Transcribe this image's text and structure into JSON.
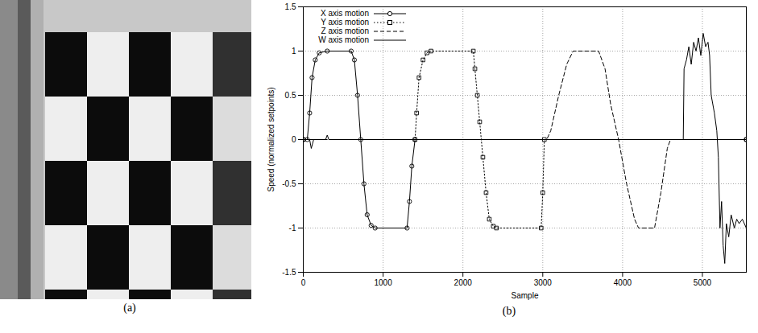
{
  "chart_data": [
    {
      "type": "image",
      "caption": "(a)"
    },
    {
      "type": "line",
      "caption": "(b)",
      "x_label": "Sample",
      "y_label": "Speed (normalized setpoints)",
      "xlim": [
        0,
        5550
      ],
      "xticks": [
        0,
        1000,
        2000,
        3000,
        4000,
        5000
      ],
      "ylim": [
        -1.5,
        1.5
      ],
      "yticks": [
        -1.5,
        -1,
        -0.5,
        0,
        0.5,
        1,
        1.5
      ],
      "grid": true,
      "legend": "upper left",
      "series": [
        {
          "name": "X axis motion",
          "color": "#000000",
          "marker": "circle",
          "line_style": "solid",
          "x": [
            0,
            50,
            80,
            110,
            150,
            200,
            300,
            600,
            640,
            680,
            720,
            760,
            800,
            850,
            900,
            1300,
            1330,
            1360,
            1400,
            5550
          ],
          "values": [
            0,
            0,
            0.3,
            0.7,
            0.9,
            0.98,
            1,
            1,
            0.9,
            0.5,
            0,
            -0.5,
            -0.85,
            -0.97,
            -1,
            -1,
            -0.7,
            -0.3,
            0,
            0
          ]
        },
        {
          "name": "Y axis motion",
          "color": "#000000",
          "marker": "square",
          "line_style": "dotted",
          "x": [
            0,
            1400,
            1420,
            1450,
            1500,
            1550,
            1600,
            2130,
            2150,
            2180,
            2210,
            2250,
            2290,
            2330,
            2380,
            2420,
            2980,
            3000,
            3020,
            5550
          ],
          "values": [
            0,
            0,
            0.3,
            0.7,
            0.9,
            0.98,
            1,
            1,
            0.8,
            0.5,
            0.2,
            -0.2,
            -0.6,
            -0.9,
            -0.98,
            -1,
            -1,
            -0.6,
            0,
            0
          ]
        },
        {
          "name": "Z axis motion",
          "color": "#000000",
          "marker": "none",
          "line_style": "dashed",
          "x": [
            0,
            3050,
            3100,
            3200,
            3300,
            3380,
            3700,
            3780,
            3850,
            3950,
            4050,
            4150,
            4200,
            4400,
            4480,
            4560,
            4600,
            5550
          ],
          "values": [
            0,
            0,
            0.1,
            0.5,
            0.85,
            1,
            1,
            0.8,
            0.4,
            0,
            -0.5,
            -0.9,
            -1,
            -1,
            -0.6,
            -0.1,
            0,
            0
          ]
        },
        {
          "name": "W axis motion",
          "color": "#000000",
          "marker": "none",
          "line_style": "solid",
          "x": [
            0,
            80,
            100,
            130,
            280,
            300,
            320,
            4760,
            4770,
            4800,
            4830,
            4860,
            4890,
            4920,
            4950,
            4980,
            5010,
            5040,
            5070,
            5090,
            5110,
            5150,
            5180,
            5200,
            5220,
            5240,
            5260,
            5280,
            5300,
            5330,
            5360,
            5400,
            5430,
            5460,
            5500,
            5550
          ],
          "values": [
            0,
            0,
            -0.1,
            0,
            0,
            0.05,
            0,
            0,
            0.8,
            0.9,
            1.05,
            0.85,
            1.1,
            1,
            1.15,
            0.95,
            1.2,
            1.05,
            1.1,
            0.95,
            0.5,
            0.3,
            0.1,
            -0.2,
            -1,
            -0.7,
            -1.2,
            -1.4,
            -0.95,
            -1.1,
            -0.85,
            -1,
            -0.9,
            -0.95,
            -0.9,
            -1
          ]
        }
      ]
    }
  ]
}
